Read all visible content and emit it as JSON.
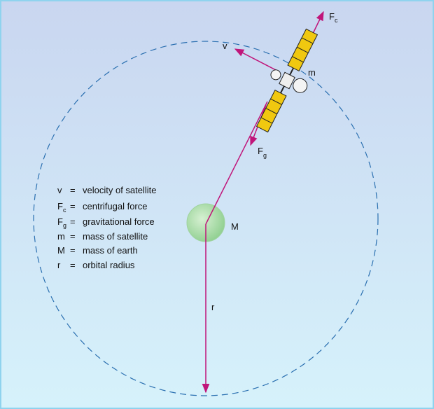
{
  "labels": {
    "velocity": "v",
    "centrifugal": {
      "symbol": "F",
      "subscript": "c"
    },
    "gravitational": {
      "symbol": "F",
      "subscript": "g"
    },
    "satellite_mass": "m",
    "earth_mass": "M",
    "radius": "r"
  },
  "legend": {
    "separator": "=",
    "items": [
      {
        "symbol": "v",
        "description": "velocity of satellite"
      },
      {
        "symbol": "F",
        "subscript": "c",
        "description": "centrifugal force"
      },
      {
        "symbol": "F",
        "subscript": "g",
        "description": "gravitational force"
      },
      {
        "symbol": "m",
        "description": "mass of satellite"
      },
      {
        "symbol": "M",
        "description": "mass of earth"
      },
      {
        "symbol": "r",
        "description": "orbital radius"
      }
    ]
  }
}
